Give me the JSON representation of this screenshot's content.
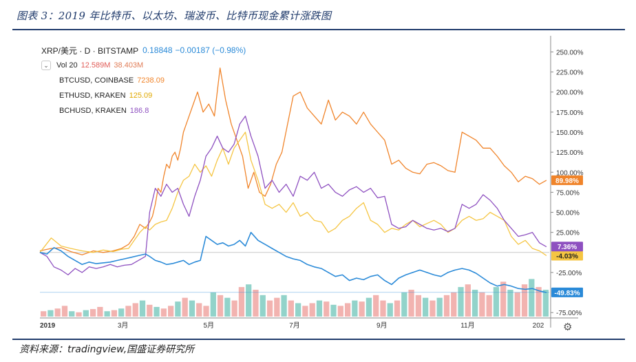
{
  "figure_title": "图表 3：2019 年比特币、以太坊、瑞波币、比特币现金累计涨跌图",
  "source": "资料来源：tradingview,国盛证券研究所",
  "legend": {
    "main_symbol": "XRP/美元 · D · BITSTAMP",
    "main_price": "0.18848",
    "main_change": "−0.00187 (−0.98%)",
    "vol_label": "Vol 20",
    "vol_value1": "12.589M",
    "vol_value2": "38.403M",
    "toggle_glyph": "⌄",
    "series": [
      {
        "name": "BTCUSD, COINBASE",
        "value": "7238.09",
        "color": "#f0842a"
      },
      {
        "name": "ETHUSD, KRAKEN",
        "value": "125.09",
        "color": "#f5c542"
      },
      {
        "name": "BCHUSD, KRAKEN",
        "value": "186.8",
        "color": "#8e50c0"
      }
    ]
  },
  "colors": {
    "btc": "#f0842a",
    "eth": "#f5c542",
    "bch": "#8e50c0",
    "xrp": "#2a8ad8",
    "vol_up": "#7fcbc1",
    "vol_down": "#f0a6a2"
  },
  "chart_data": {
    "type": "line",
    "title": "XRP/美元 · D · BITSTAMP",
    "x_axis": {
      "tick_labels": [
        "2019",
        "3月",
        "5月",
        "7月",
        "9月",
        "11月",
        "202"
      ]
    },
    "y_axis": {
      "unit": "%",
      "range": [
        -80,
        265
      ],
      "tick_labels": [
        "250.00%",
        "225.00%",
        "200.00%",
        "175.00%",
        "150.00%",
        "125.00%",
        "100.00%",
        "75.00%",
        "50.00%",
        "25.00%",
        "-25.00%",
        "-75.00%"
      ],
      "tick_values": [
        250,
        225,
        200,
        175,
        150,
        125,
        100,
        75,
        50,
        25,
        -25,
        -75
      ]
    },
    "series": [
      {
        "name": "BTCUSD, COINBASE",
        "key": "btc",
        "last_label": "89.98%",
        "last": 89.98,
        "x": [
          0,
          8,
          15,
          22,
          30,
          38,
          45,
          52,
          58,
          63,
          67,
          71,
          75,
          78,
          80,
          82,
          84,
          86,
          88,
          90,
          92,
          94,
          96,
          98,
          100,
          102,
          104,
          108,
          112,
          116,
          120,
          124,
          128,
          132,
          136,
          140,
          144,
          148,
          152,
          156,
          160,
          164,
          168,
          172,
          176,
          180,
          185,
          190,
          195,
          200,
          205,
          210,
          215,
          220,
          225,
          230,
          235,
          240,
          245,
          250,
          255,
          260,
          265,
          270,
          275,
          280,
          285,
          290,
          295,
          300,
          305,
          310,
          315,
          320,
          325,
          330,
          335,
          340,
          345,
          350,
          355,
          360
        ],
        "y": [
          2,
          5,
          6,
          1,
          -3,
          2,
          0,
          2,
          5,
          10,
          20,
          35,
          30,
          38,
          45,
          60,
          80,
          75,
          95,
          110,
          105,
          120,
          125,
          115,
          130,
          150,
          160,
          180,
          200,
          175,
          185,
          170,
          230,
          190,
          160,
          140,
          120,
          80,
          100,
          75,
          70,
          85,
          110,
          125,
          160,
          195,
          200,
          180,
          170,
          160,
          190,
          165,
          175,
          170,
          160,
          175,
          160,
          150,
          140,
          110,
          115,
          105,
          100,
          98,
          110,
          112,
          108,
          102,
          100,
          150,
          145,
          140,
          130,
          130,
          120,
          108,
          100,
          88,
          95,
          92,
          85,
          90
        ],
        "comment": "x in days since Jan 1 2019, y in % cumulative change"
      },
      {
        "name": "ETHUSD, KRAKEN",
        "key": "eth",
        "last_label": "-4.03%",
        "last": -4.03,
        "x": [
          0,
          8,
          15,
          22,
          30,
          38,
          45,
          52,
          58,
          63,
          67,
          71,
          75,
          78,
          82,
          86,
          90,
          94,
          98,
          102,
          106,
          110,
          114,
          118,
          122,
          126,
          130,
          134,
          138,
          142,
          146,
          150,
          155,
          160,
          165,
          170,
          175,
          180,
          185,
          190,
          195,
          200,
          205,
          210,
          215,
          220,
          225,
          230,
          235,
          240,
          245,
          250,
          255,
          260,
          265,
          270,
          275,
          280,
          285,
          290,
          295,
          300,
          305,
          310,
          315,
          320,
          325,
          330,
          335,
          340,
          345,
          350,
          355,
          360
        ],
        "y": [
          0,
          18,
          8,
          5,
          2,
          0,
          3,
          1,
          4,
          5,
          15,
          25,
          32,
          28,
          35,
          38,
          40,
          55,
          75,
          90,
          95,
          110,
          100,
          108,
          95,
          115,
          130,
          110,
          130,
          140,
          150,
          115,
          90,
          60,
          55,
          60,
          50,
          62,
          45,
          50,
          40,
          38,
          25,
          30,
          40,
          45,
          55,
          62,
          40,
          35,
          25,
          30,
          28,
          35,
          40,
          32,
          36,
          40,
          35,
          25,
          30,
          40,
          45,
          40,
          42,
          50,
          45,
          40,
          20,
          10,
          15,
          5,
          2,
          -4
        ]
      },
      {
        "name": "BCHUSD, KRAKEN",
        "key": "bch",
        "last_label": "7.36%",
        "last": 7.36,
        "x": [
          0,
          5,
          10,
          15,
          20,
          25,
          30,
          35,
          40,
          45,
          50,
          55,
          60,
          65,
          70,
          75,
          78,
          82,
          86,
          90,
          94,
          98,
          102,
          106,
          110,
          114,
          118,
          122,
          126,
          130,
          134,
          138,
          142,
          146,
          150,
          155,
          160,
          165,
          170,
          175,
          180,
          185,
          190,
          195,
          200,
          205,
          210,
          215,
          220,
          225,
          230,
          235,
          240,
          245,
          250,
          255,
          260,
          265,
          270,
          275,
          280,
          285,
          290,
          295,
          300,
          305,
          310,
          315,
          320,
          325,
          330,
          335,
          340,
          345,
          350,
          355,
          360
        ],
        "y": [
          0,
          -5,
          -18,
          -22,
          -28,
          -20,
          -25,
          -18,
          -20,
          -18,
          -15,
          -18,
          -16,
          -15,
          -10,
          -5,
          50,
          80,
          70,
          85,
          75,
          80,
          60,
          45,
          70,
          90,
          120,
          130,
          145,
          130,
          125,
          135,
          160,
          170,
          145,
          120,
          80,
          90,
          75,
          85,
          70,
          95,
          90,
          100,
          80,
          85,
          75,
          70,
          78,
          82,
          75,
          80,
          68,
          70,
          35,
          30,
          32,
          40,
          35,
          30,
          28,
          30,
          26,
          30,
          60,
          55,
          60,
          72,
          65,
          55,
          40,
          30,
          20,
          22,
          25,
          12,
          7
        ]
      },
      {
        "name": "XRP/美元 · D · BITSTAMP",
        "key": "xrp",
        "last_label": "-49.83%",
        "last": -49.83,
        "x": [
          0,
          5,
          10,
          15,
          20,
          25,
          30,
          35,
          40,
          45,
          50,
          55,
          60,
          65,
          70,
          75,
          78,
          82,
          86,
          90,
          94,
          98,
          102,
          106,
          110,
          114,
          118,
          122,
          126,
          130,
          134,
          138,
          142,
          146,
          150,
          155,
          160,
          165,
          170,
          175,
          180,
          185,
          190,
          195,
          200,
          205,
          210,
          215,
          220,
          225,
          230,
          235,
          240,
          245,
          250,
          255,
          260,
          265,
          270,
          275,
          280,
          285,
          290,
          295,
          300,
          305,
          310,
          315,
          320,
          325,
          330,
          335,
          340,
          345,
          350,
          355,
          360
        ],
        "y": [
          0,
          -2,
          6,
          2,
          -5,
          -10,
          -15,
          -12,
          -14,
          -13,
          -12,
          -10,
          -8,
          -6,
          -4,
          -2,
          -5,
          -10,
          -12,
          -15,
          -14,
          -12,
          -10,
          -15,
          -12,
          -10,
          20,
          15,
          10,
          12,
          8,
          10,
          15,
          8,
          25,
          15,
          10,
          5,
          0,
          -5,
          -8,
          -10,
          -15,
          -18,
          -20,
          -25,
          -30,
          -28,
          -35,
          -32,
          -34,
          -30,
          -28,
          -35,
          -40,
          -32,
          -28,
          -25,
          -22,
          -25,
          -28,
          -30,
          -25,
          -22,
          -20,
          -22,
          -26,
          -32,
          -38,
          -42,
          -40,
          -42,
          -45,
          -46,
          -45,
          -48,
          -50
        ]
      }
    ],
    "volume": {
      "note": "relative daily volume bars (0..1), green up / red down",
      "values": [
        0.1,
        0.12,
        0.15,
        0.2,
        0.1,
        0.08,
        0.12,
        0.14,
        0.18,
        0.1,
        0.12,
        0.15,
        0.2,
        0.25,
        0.3,
        0.22,
        0.18,
        0.15,
        0.2,
        0.28,
        0.35,
        0.3,
        0.25,
        0.2,
        0.45,
        0.4,
        0.35,
        0.3,
        0.55,
        0.6,
        0.5,
        0.4,
        0.3,
        0.35,
        0.4,
        0.3,
        0.25,
        0.2,
        0.25,
        0.3,
        0.28,
        0.22,
        0.2,
        0.25,
        0.3,
        0.28,
        0.35,
        0.4,
        0.3,
        0.25,
        0.3,
        0.45,
        0.5,
        0.4,
        0.35,
        0.3,
        0.35,
        0.4,
        0.45,
        0.55,
        0.6,
        0.5,
        0.45,
        0.4,
        0.55,
        0.65,
        0.5,
        0.45,
        0.6,
        0.7,
        0.55,
        0.5
      ]
    }
  }
}
